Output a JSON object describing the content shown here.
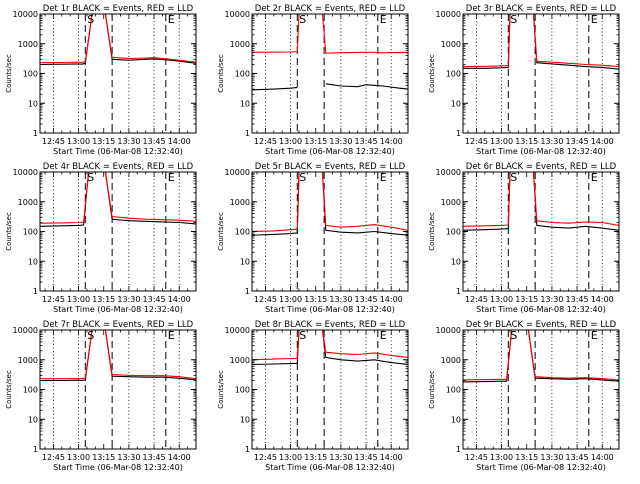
{
  "colors": {
    "events": "#000000",
    "lld": "#ff0000",
    "axes": "#000000",
    "background": "#ffffff"
  },
  "chart_data": [
    {
      "type": "line",
      "title": "Det 1r  BLACK = Events, RED = LLD",
      "xlabel": "Start Time (06-Mar-08 12:32:40)",
      "ylabel": "Counts/sec",
      "xlim": [
        "12:37",
        "14:10"
      ],
      "ylim": [
        1,
        10000
      ],
      "yscale": "log",
      "x_ticks": [
        "12:45",
        "13:00",
        "13:15",
        "13:30",
        "13:45",
        "14:00"
      ],
      "y_ticks": [
        "1",
        "10",
        "100",
        "1000",
        "10000"
      ],
      "markers": [
        {
          "label": "S",
          "time": "13:04"
        },
        {
          "label": "E",
          "time": "13:52"
        }
      ],
      "markers_undashed": [
        {
          "time": "13:20"
        }
      ],
      "grid": "dotted vertical at 13:00, 13:30, 14:00",
      "series": [
        {
          "name": "Events",
          "x": [
            "12:37",
            "12:50",
            "13:00",
            "13:02",
            "13:04",
            "13:08",
            "13:16",
            "13:20",
            "13:30",
            "13:40",
            "13:45",
            "13:55",
            "14:05",
            "14:10"
          ],
          "y": [
            200,
            205,
            210,
            205,
            220,
            10000,
            10000,
            300,
            280,
            300,
            310,
            280,
            240,
            220
          ]
        },
        {
          "name": "LLD",
          "x": [
            "12:37",
            "12:50",
            "13:00",
            "13:02",
            "13:04",
            "13:08",
            "13:16",
            "13:20",
            "13:30",
            "13:40",
            "13:45",
            "13:55",
            "14:05",
            "14:10"
          ],
          "y": [
            230,
            235,
            240,
            235,
            250,
            10000,
            10000,
            350,
            320,
            330,
            340,
            300,
            260,
            240
          ]
        }
      ]
    },
    {
      "type": "line",
      "title": "Det 2r  BLACK = Events, RED = LLD",
      "xlabel": "Start Time (06-Mar-08 12:32:40)",
      "ylabel": "Counts/sec",
      "xlim": [
        "12:37",
        "14:10"
      ],
      "ylim": [
        1,
        10000
      ],
      "yscale": "log",
      "x_ticks": [
        "12:45",
        "13:00",
        "13:15",
        "13:30",
        "13:45",
        "14:00"
      ],
      "y_ticks": [
        "1",
        "10",
        "100",
        "1000",
        "10000"
      ],
      "markers": [
        {
          "label": "S",
          "time": "13:04"
        },
        {
          "label": "E",
          "time": "13:52"
        }
      ],
      "markers_undashed": [
        {
          "time": "13:20"
        }
      ],
      "grid": "dotted vertical at 13:00, 13:30, 14:00",
      "series": [
        {
          "name": "Events",
          "x": [
            "12:37",
            "12:50",
            "13:00",
            "13:04",
            "13:05",
            "13:19",
            "13:21",
            "13:30",
            "13:40",
            "13:45",
            "13:55",
            "14:05",
            "14:10"
          ],
          "y": [
            28,
            30,
            32,
            34,
            null,
            null,
            45,
            38,
            36,
            42,
            38,
            32,
            30
          ]
        },
        {
          "name": "LLD",
          "x": [
            "12:37",
            "12:50",
            "13:00",
            "13:04",
            "13:05",
            "13:19",
            "13:21",
            "13:30",
            "13:40",
            "13:45",
            "13:55",
            "14:05",
            "14:10"
          ],
          "y": [
            520,
            520,
            530,
            540,
            10000,
            10000,
            480,
            500,
            510,
            520,
            500,
            510,
            500
          ]
        }
      ]
    },
    {
      "type": "line",
      "title": "Det 3r  BLACK = Events, RED = LLD",
      "xlabel": "Start Time (06-Mar-08 12:32:40)",
      "ylabel": "Counts/sec",
      "xlim": [
        "12:37",
        "14:10"
      ],
      "ylim": [
        1,
        10000
      ],
      "yscale": "log",
      "x_ticks": [
        "12:45",
        "13:00",
        "13:15",
        "13:30",
        "13:45",
        "14:00"
      ],
      "y_ticks": [
        "1",
        "10",
        "100",
        "1000",
        "10000"
      ],
      "markers": [
        {
          "label": "S",
          "time": "13:04"
        },
        {
          "label": "E",
          "time": "13:52"
        }
      ],
      "markers_undashed": [
        {
          "time": "13:20"
        }
      ],
      "grid": "dotted vertical at 13:00, 13:30, 14:00",
      "series": [
        {
          "name": "Events",
          "x": [
            "12:37",
            "12:50",
            "13:00",
            "13:04",
            "13:05",
            "13:19",
            "13:21",
            "13:30",
            "13:40",
            "13:50",
            "14:00",
            "14:10"
          ],
          "y": [
            150,
            150,
            155,
            160,
            10000,
            10000,
            230,
            210,
            190,
            170,
            160,
            140
          ]
        },
        {
          "name": "LLD",
          "x": [
            "12:37",
            "12:50",
            "13:00",
            "13:04",
            "13:05",
            "13:19",
            "13:21",
            "13:30",
            "13:40",
            "13:50",
            "14:00",
            "14:10"
          ],
          "y": [
            170,
            175,
            180,
            185,
            10000,
            10000,
            260,
            240,
            220,
            200,
            190,
            170
          ]
        }
      ]
    },
    {
      "type": "line",
      "title": "Det 4r  BLACK = Events, RED = LLD",
      "xlabel": "Start Time (06-Mar-08 12:32:40)",
      "ylabel": "Counts/sec",
      "xlim": [
        "12:37",
        "14:10"
      ],
      "ylim": [
        1,
        10000
      ],
      "yscale": "log",
      "x_ticks": [
        "12:45",
        "13:00",
        "13:15",
        "13:30",
        "13:45",
        "14:00"
      ],
      "y_ticks": [
        "1",
        "10",
        "100",
        "1000",
        "10000"
      ],
      "markers": [
        {
          "label": "S",
          "time": "13:04"
        },
        {
          "label": "E",
          "time": "13:52"
        }
      ],
      "markers_undashed": [
        {
          "time": "13:20"
        }
      ],
      "grid": "dotted vertical at 13:00, 13:30, 14:00",
      "series": [
        {
          "name": "Events",
          "x": [
            "12:37",
            "12:50",
            "13:00",
            "13:03",
            "13:06",
            "13:16",
            "13:20",
            "13:30",
            "13:40",
            "13:50",
            "14:00",
            "14:10"
          ],
          "y": [
            150,
            155,
            160,
            165,
            10000,
            10000,
            260,
            230,
            220,
            210,
            200,
            180
          ]
        },
        {
          "name": "LLD",
          "x": [
            "12:37",
            "12:50",
            "13:00",
            "13:03",
            "13:06",
            "13:16",
            "13:20",
            "13:30",
            "13:40",
            "13:50",
            "14:00",
            "14:10"
          ],
          "y": [
            190,
            195,
            200,
            205,
            10000,
            10000,
            320,
            280,
            260,
            250,
            240,
            220
          ]
        }
      ]
    },
    {
      "type": "line",
      "title": "Det 5r  BLACK = Events, RED = LLD",
      "xlabel": "Start Time (06-Mar-08 12:32:40)",
      "ylabel": "Counts/sec",
      "xlim": [
        "12:37",
        "14:10"
      ],
      "ylim": [
        1,
        10000
      ],
      "yscale": "log",
      "x_ticks": [
        "12:45",
        "13:00",
        "13:15",
        "13:30",
        "13:45",
        "14:00"
      ],
      "y_ticks": [
        "1",
        "10",
        "100",
        "1000",
        "10000"
      ],
      "markers": [
        {
          "label": "S",
          "time": "13:04"
        },
        {
          "label": "E",
          "time": "13:52"
        }
      ],
      "markers_undashed": [
        {
          "time": "13:20"
        }
      ],
      "grid": "dotted vertical at 13:00, 13:30, 14:00",
      "series": [
        {
          "name": "Events",
          "x": [
            "12:37",
            "12:50",
            "13:00",
            "13:04",
            "13:05",
            "13:19",
            "13:21",
            "13:30",
            "13:40",
            "13:50",
            "14:00",
            "14:10"
          ],
          "y": [
            75,
            80,
            85,
            90,
            10000,
            10000,
            110,
            95,
            90,
            100,
            85,
            75
          ]
        },
        {
          "name": "LLD",
          "x": [
            "12:37",
            "12:50",
            "13:00",
            "13:04",
            "13:05",
            "13:19",
            "13:21",
            "13:30",
            "13:40",
            "13:50",
            "14:00",
            "14:10"
          ],
          "y": [
            100,
            105,
            115,
            120,
            10000,
            10000,
            160,
            140,
            150,
            170,
            140,
            110
          ]
        }
      ]
    },
    {
      "type": "line",
      "title": "Det 6r  BLACK = Events, RED = LLD",
      "xlabel": "Start Time (06-Mar-08 12:32:40)",
      "ylabel": "Counts/sec",
      "xlim": [
        "12:37",
        "14:10"
      ],
      "ylim": [
        1,
        10000
      ],
      "yscale": "log",
      "x_ticks": [
        "12:45",
        "13:00",
        "13:15",
        "13:30",
        "13:45",
        "14:00"
      ],
      "y_ticks": [
        "1",
        "10",
        "100",
        "1000",
        "10000"
      ],
      "markers": [
        {
          "label": "S",
          "time": "13:04"
        },
        {
          "label": "E",
          "time": "13:52"
        }
      ],
      "markers_undashed": [
        {
          "time": "13:20"
        }
      ],
      "grid": "dotted vertical at 13:00, 13:30, 14:00",
      "series": [
        {
          "name": "Events",
          "x": [
            "12:37",
            "12:50",
            "13:00",
            "13:04",
            "13:05",
            "13:19",
            "13:21",
            "13:30",
            "13:40",
            "13:50",
            "14:00",
            "14:10"
          ],
          "y": [
            110,
            115,
            120,
            125,
            10000,
            10000,
            160,
            140,
            130,
            150,
            130,
            110
          ]
        },
        {
          "name": "LLD",
          "x": [
            "12:37",
            "12:50",
            "13:00",
            "13:04",
            "13:05",
            "13:19",
            "13:21",
            "13:30",
            "13:40",
            "13:50",
            "14:00",
            "14:10"
          ],
          "y": [
            150,
            155,
            160,
            165,
            10000,
            10000,
            230,
            200,
            190,
            210,
            200,
            160
          ]
        }
      ]
    },
    {
      "type": "line",
      "title": "Det 7r  BLACK = Events, RED = LLD",
      "xlabel": "Start Time (06-Mar-08 12:32:40)",
      "ylabel": "Counts/sec",
      "xlim": [
        "12:37",
        "14:10"
      ],
      "ylim": [
        1,
        10000
      ],
      "yscale": "log",
      "x_ticks": [
        "12:45",
        "13:00",
        "13:15",
        "13:30",
        "13:45",
        "14:00"
      ],
      "y_ticks": [
        "1",
        "10",
        "100",
        "1000",
        "10000"
      ],
      "markers": [
        {
          "label": "S",
          "time": "13:04"
        },
        {
          "label": "E",
          "time": "13:52"
        }
      ],
      "markers_undashed": [
        {
          "time": "13:20"
        }
      ],
      "grid": "dotted vertical at 13:00, 13:30, 14:00",
      "series": [
        {
          "name": "Events",
          "x": [
            "12:37",
            "12:50",
            "13:00",
            "13:02",
            "13:04",
            "13:08",
            "13:16",
            "13:20",
            "13:30",
            "13:40",
            "13:50",
            "14:00",
            "14:10"
          ],
          "y": [
            200,
            200,
            205,
            200,
            210,
            10000,
            10000,
            280,
            270,
            260,
            260,
            240,
            210
          ]
        },
        {
          "name": "LLD",
          "x": [
            "12:37",
            "12:50",
            "13:00",
            "13:02",
            "13:04",
            "13:08",
            "13:16",
            "13:20",
            "13:30",
            "13:40",
            "13:50",
            "14:00",
            "14:10"
          ],
          "y": [
            230,
            230,
            235,
            230,
            240,
            10000,
            10000,
            320,
            300,
            290,
            290,
            270,
            230
          ]
        }
      ]
    },
    {
      "type": "line",
      "title": "Det 8r  BLACK = Events, RED = LLD",
      "xlabel": "Start Time (06-Mar-08 12:32:40)",
      "ylabel": "Counts/sec",
      "xlim": [
        "12:37",
        "14:10"
      ],
      "ylim": [
        1,
        10000
      ],
      "yscale": "log",
      "x_ticks": [
        "12:45",
        "13:00",
        "13:15",
        "13:30",
        "13:45",
        "14:00"
      ],
      "y_ticks": [
        "1",
        "10",
        "100",
        "1000",
        "10000"
      ],
      "markers": [
        {
          "label": "S",
          "time": "13:04"
        },
        {
          "label": "E",
          "time": "13:52"
        }
      ],
      "markers_undashed": [
        {
          "time": "13:20"
        }
      ],
      "grid": "dotted vertical at 13:00, 13:30, 14:00",
      "series": [
        {
          "name": "Events",
          "x": [
            "12:37",
            "12:50",
            "13:00",
            "13:04",
            "13:05",
            "13:19",
            "13:21",
            "13:30",
            "13:40",
            "13:50",
            "14:00",
            "14:10"
          ],
          "y": [
            700,
            720,
            740,
            760,
            10000,
            10000,
            1200,
            1000,
            900,
            1000,
            800,
            700
          ]
        },
        {
          "name": "LLD",
          "x": [
            "12:37",
            "12:50",
            "13:00",
            "13:04",
            "13:05",
            "13:19",
            "13:21",
            "13:30",
            "13:40",
            "13:50",
            "14:00",
            "14:10"
          ],
          "y": [
            1000,
            1050,
            1100,
            1100,
            10000,
            10000,
            1800,
            1600,
            1500,
            1700,
            1400,
            1200
          ]
        }
      ]
    },
    {
      "type": "line",
      "title": "Det 9r  BLACK = Events, RED = LLD",
      "xlabel": "Start Time (06-Mar-08 12:32:40)",
      "ylabel": "Counts/sec",
      "xlim": [
        "12:37",
        "14:10"
      ],
      "ylim": [
        1,
        10000
      ],
      "yscale": "log",
      "x_ticks": [
        "12:45",
        "13:00",
        "13:15",
        "13:30",
        "13:45",
        "14:00"
      ],
      "y_ticks": [
        "1",
        "10",
        "100",
        "1000",
        "10000"
      ],
      "markers": [
        {
          "label": "S",
          "time": "13:04"
        },
        {
          "label": "E",
          "time": "13:52"
        }
      ],
      "markers_undashed": [
        {
          "time": "13:20"
        }
      ],
      "grid": "dotted vertical at 13:00, 13:30, 14:00",
      "series": [
        {
          "name": "Events",
          "x": [
            "12:37",
            "12:50",
            "13:00",
            "13:03",
            "13:06",
            "13:16",
            "13:20",
            "13:30",
            "13:40",
            "13:50",
            "14:00",
            "14:10"
          ],
          "y": [
            180,
            185,
            190,
            190,
            10000,
            10000,
            240,
            230,
            220,
            230,
            210,
            190
          ]
        },
        {
          "name": "LLD",
          "x": [
            "12:37",
            "12:50",
            "13:00",
            "13:03",
            "13:06",
            "13:16",
            "13:20",
            "13:30",
            "13:40",
            "13:50",
            "14:00",
            "14:10"
          ],
          "y": [
            210,
            215,
            220,
            220,
            10000,
            10000,
            270,
            250,
            240,
            250,
            230,
            210
          ]
        }
      ]
    }
  ]
}
